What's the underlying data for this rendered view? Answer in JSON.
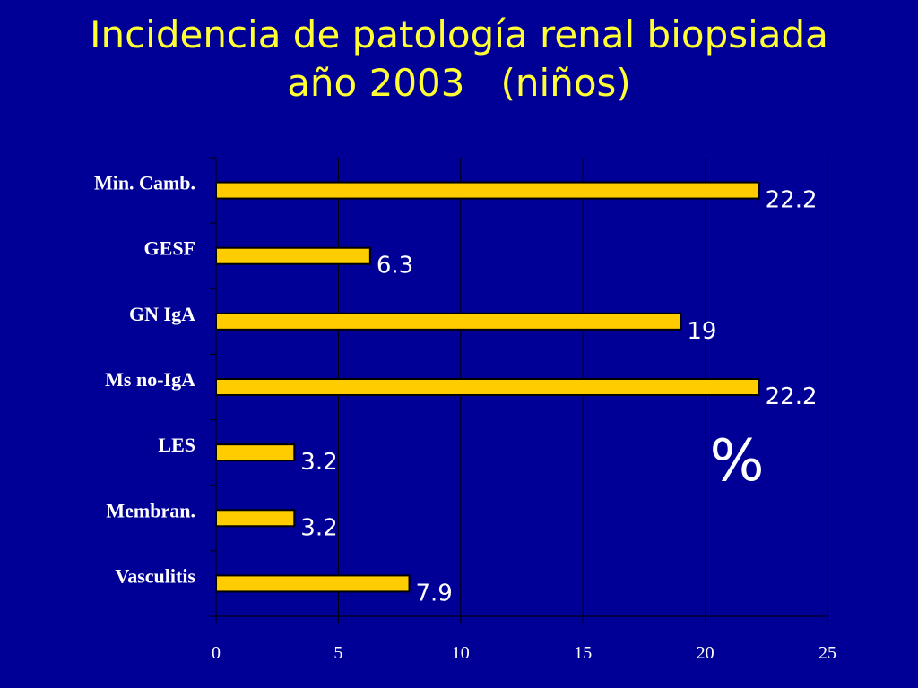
{
  "slide": {
    "title_line1": "Incidencia de patología renal biopsiada",
    "title_line2": "año 2003   (niños)"
  },
  "colors": {
    "background": "#000096",
    "title": "#FFFF33",
    "bar_fill": "#FFCC00",
    "bar_stroke": "#000000",
    "text": "#FFFFFF"
  },
  "chart_data": {
    "type": "bar",
    "orientation": "horizontal",
    "categories": [
      "Min. Camb.",
      "GESF",
      "GN IgA",
      "Ms no-IgA",
      "LES",
      "Membran.",
      "Vasculitis"
    ],
    "values": [
      22.2,
      6.3,
      19,
      22.2,
      3.2,
      3.2,
      7.9
    ],
    "value_labels": [
      "22.2",
      "6.3",
      "19",
      "22.2",
      "3.2",
      "3.2",
      "7.9"
    ],
    "xlim": [
      0,
      25
    ],
    "xticks": [
      "0",
      "5",
      "10",
      "15",
      "20",
      "25"
    ],
    "xtick_values": [
      0,
      5,
      10,
      15,
      20,
      25
    ],
    "grid": "vertical",
    "legend": "none",
    "annotation": "%"
  }
}
